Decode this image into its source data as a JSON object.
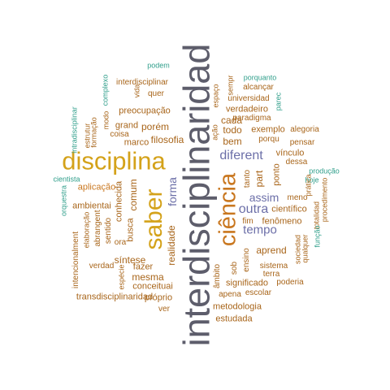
{
  "colors": {
    "gray": "#5d5d6b",
    "gold": "#d4a21a",
    "orange": "#c9771f",
    "brown": "#a8651a",
    "purple": "#6c6fa8",
    "teal": "#2f9e8a"
  },
  "words": [
    "interdisciplinaridad",
    "disciplina",
    "saber",
    "ciência",
    "diferent",
    "outra",
    "tempo",
    "assim",
    "forma",
    "filosofia",
    "porém",
    "comum",
    "conhecida",
    "realidade",
    "busca",
    "síntese",
    "mesma",
    "aprend",
    "bem",
    "cada",
    "todo",
    "part",
    "ponto",
    "tanto",
    "preocupação",
    "grand",
    "marco",
    "aplicação",
    "ambientai",
    "abrangent",
    "sentido",
    "ora",
    "fazer",
    "conceituai",
    "verdad",
    "intencionalment",
    "transdisciplinaridad",
    "próprio",
    "ver",
    "metodologia",
    "estudada",
    "apena",
    "significado",
    "escolar",
    "poderia",
    "terra",
    "sistema",
    "sob",
    "âmbito",
    "ensino",
    "científico",
    "fenômeno",
    "fim",
    "meno",
    "vínculo",
    "dessa",
    "pensar",
    "alegoria",
    "exemplo",
    "paradigma",
    "verdadeiro",
    "universidad",
    "alcançar",
    "porquanto",
    "parec",
    "sempr",
    "espaço",
    "ação",
    "porqu",
    "podem",
    "interdisciplinar",
    "quer",
    "vida",
    "complexo",
    "estrutur",
    "formação",
    "intradisciplinar",
    "modo",
    "coisa",
    "cientista",
    "orquestra",
    "elaboração",
    "espécie",
    "hoje",
    "produção",
    "prática",
    "totalidad",
    "procedimento",
    "sociedad",
    "qualquer",
    "função"
  ]
}
